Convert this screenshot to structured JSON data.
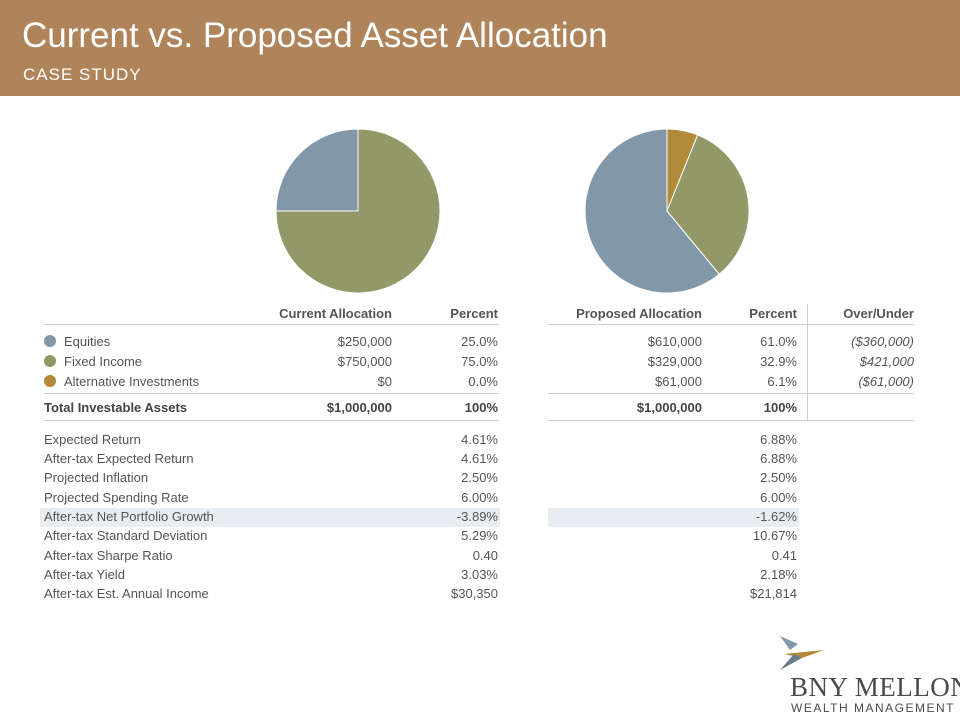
{
  "header": {
    "title": "Current vs. Proposed Asset Allocation",
    "subtitle": "CASE STUDY"
  },
  "colors": {
    "header_bg": "#b0845a",
    "equities": "#8298a8",
    "fixed_income": "#929868",
    "alternative": "#b28a3a",
    "highlight_row": "#e8edf2"
  },
  "chart_data": [
    {
      "type": "pie",
      "categories": [
        "Equities",
        "Fixed Income",
        "Alternative Investments"
      ],
      "values": [
        25.0,
        75.0,
        0.0
      ]
    },
    {
      "type": "pie",
      "categories": [
        "Equities",
        "Fixed Income",
        "Alternative Investments"
      ],
      "values": [
        61.0,
        32.9,
        6.1
      ]
    }
  ],
  "table": {
    "headers": {
      "current_allocation": "Current Allocation",
      "current_percent": "Percent",
      "proposed_allocation": "Proposed Allocation",
      "proposed_percent": "Percent",
      "over_under": "Over/Under"
    },
    "assets": [
      {
        "label": "Equities",
        "current": "$250,000",
        "current_pct": "25.0%",
        "proposed": "$610,000",
        "proposed_pct": "61.0%",
        "over_under": "($360,000)"
      },
      {
        "label": "Fixed Income",
        "current": "$750,000",
        "current_pct": "75.0%",
        "proposed": "$329,000",
        "proposed_pct": "32.9%",
        "over_under": "$421,000"
      },
      {
        "label": "Alternative Investments",
        "current": "$0",
        "current_pct": "0.0%",
        "proposed": "$61,000",
        "proposed_pct": "6.1%",
        "over_under": "($61,000)"
      }
    ],
    "total": {
      "label": "Total Investable Assets",
      "current": "$1,000,000",
      "current_pct": "100%",
      "proposed": "$1,000,000",
      "proposed_pct": "100%"
    },
    "metrics": [
      {
        "label": "Expected Return",
        "current": "4.61%",
        "proposed": "6.88%"
      },
      {
        "label": "After-tax Expected Return",
        "current": "4.61%",
        "proposed": "6.88%"
      },
      {
        "label": "Projected Inflation",
        "current": "2.50%",
        "proposed": "2.50%"
      },
      {
        "label": "Projected Spending Rate",
        "current": "6.00%",
        "proposed": "6.00%"
      },
      {
        "label": "After-tax Net Portfolio Growth",
        "current": "-3.89%",
        "proposed": "-1.62%"
      },
      {
        "label": "After-tax Standard Deviation",
        "current": "5.29%",
        "proposed": "10.67%"
      },
      {
        "label": "After-tax Sharpe Ratio",
        "current": "0.40",
        "proposed": "0.41"
      },
      {
        "label": "After-tax Yield",
        "current": "3.03%",
        "proposed": "2.18%"
      },
      {
        "label": "After-tax Est. Annual Income",
        "current": "$30,350",
        "proposed": "$21,814"
      }
    ]
  },
  "logo": {
    "name": "BNY MELLON",
    "sub": "WEALTH MANAGEMENT"
  }
}
